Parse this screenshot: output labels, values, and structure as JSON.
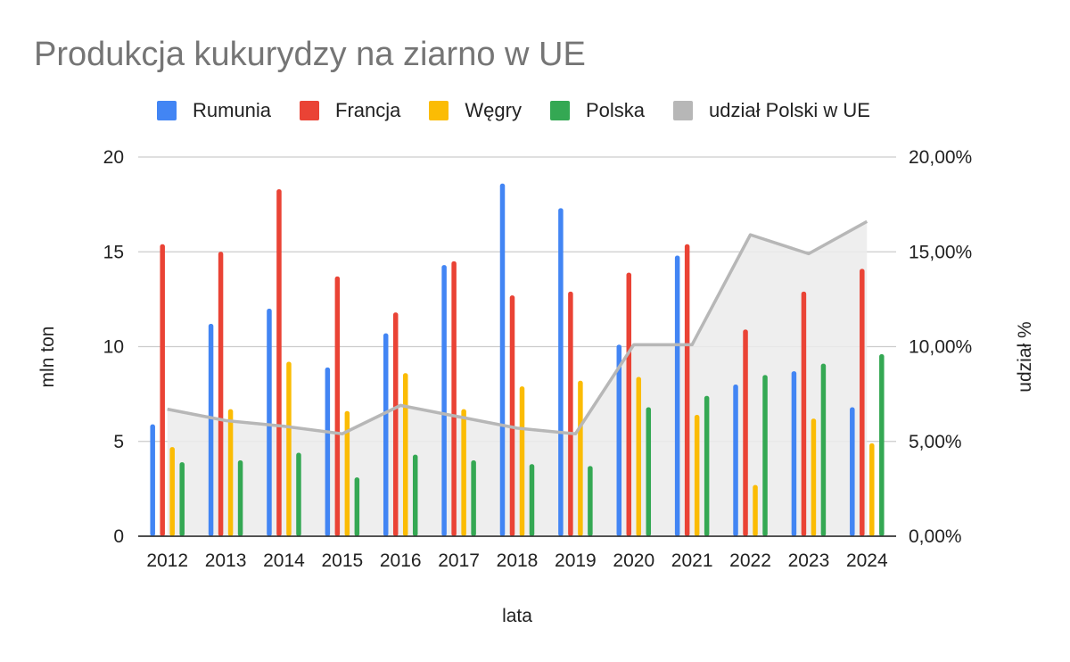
{
  "chart_data": {
    "type": "bar",
    "title": "Produkcja kukurydzy na ziarno w UE",
    "xlabel": "lata",
    "ylabel": "mln ton",
    "y2label": "udział %",
    "ylim": [
      0,
      20
    ],
    "y2lim": [
      0,
      0.2
    ],
    "yticks": [
      "0",
      "5",
      "10",
      "15",
      "20"
    ],
    "y2ticks": [
      "0,00%",
      "5,00%",
      "10,00%",
      "15,00%",
      "20,00%"
    ],
    "grid": true,
    "legend": "top",
    "categories": [
      "2012",
      "2013",
      "2014",
      "2015",
      "2016",
      "2017",
      "2018",
      "2019",
      "2020",
      "2021",
      "2022",
      "2023",
      "2024"
    ],
    "series": [
      {
        "name": "Rumunia",
        "type": "bar",
        "color": "#4285F4",
        "values": [
          5.9,
          11.2,
          12.0,
          8.9,
          10.7,
          14.3,
          18.6,
          17.3,
          10.1,
          14.8,
          8.0,
          8.7,
          6.8
        ]
      },
      {
        "name": "Francja",
        "type": "bar",
        "color": "#EA4335",
        "values": [
          15.4,
          15.0,
          18.3,
          13.7,
          11.8,
          14.5,
          12.7,
          12.9,
          13.9,
          15.4,
          10.9,
          12.9,
          14.1
        ]
      },
      {
        "name": "Węgry",
        "type": "bar",
        "color": "#FBBC04",
        "values": [
          4.7,
          6.7,
          9.2,
          6.6,
          8.6,
          6.7,
          7.9,
          8.2,
          8.4,
          6.4,
          2.7,
          6.2,
          4.9
        ]
      },
      {
        "name": "Polska",
        "type": "bar",
        "color": "#34A853",
        "values": [
          3.9,
          4.0,
          4.4,
          3.1,
          4.3,
          4.0,
          3.8,
          3.7,
          6.8,
          7.4,
          8.5,
          9.1,
          9.6
        ]
      },
      {
        "name": "udział Polski w UE",
        "type": "area",
        "axis": "right",
        "color": "#B7B7B7",
        "values": [
          0.067,
          0.061,
          0.058,
          0.054,
          0.069,
          0.063,
          0.057,
          0.054,
          0.101,
          0.101,
          0.159,
          0.149,
          0.166
        ]
      }
    ]
  }
}
